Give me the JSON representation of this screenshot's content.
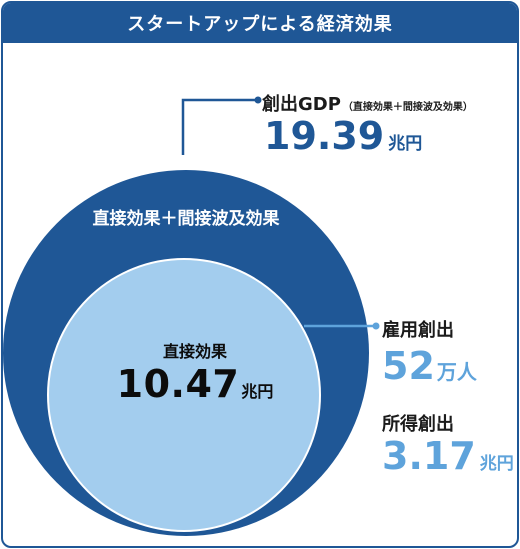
{
  "title": "スタートアップによる経済効果",
  "outer_circle": {
    "label": "直接効果＋間接波及効果"
  },
  "inner_circle": {
    "label": "直接効果",
    "value": "10.47",
    "unit": "兆円"
  },
  "gdp": {
    "label": "創出GDP",
    "sub": "（直接効果＋間接波及効果）",
    "value": "19.39",
    "unit": "兆円"
  },
  "employment": {
    "label": "雇用創出",
    "value": "52",
    "unit": "万人"
  },
  "income": {
    "label": "所得創出",
    "value": "3.17",
    "unit": "兆円"
  },
  "colors": {
    "dark_blue": "#1f5796",
    "light_blue": "#a3cdee",
    "accent_blue": "#5ea3db"
  }
}
